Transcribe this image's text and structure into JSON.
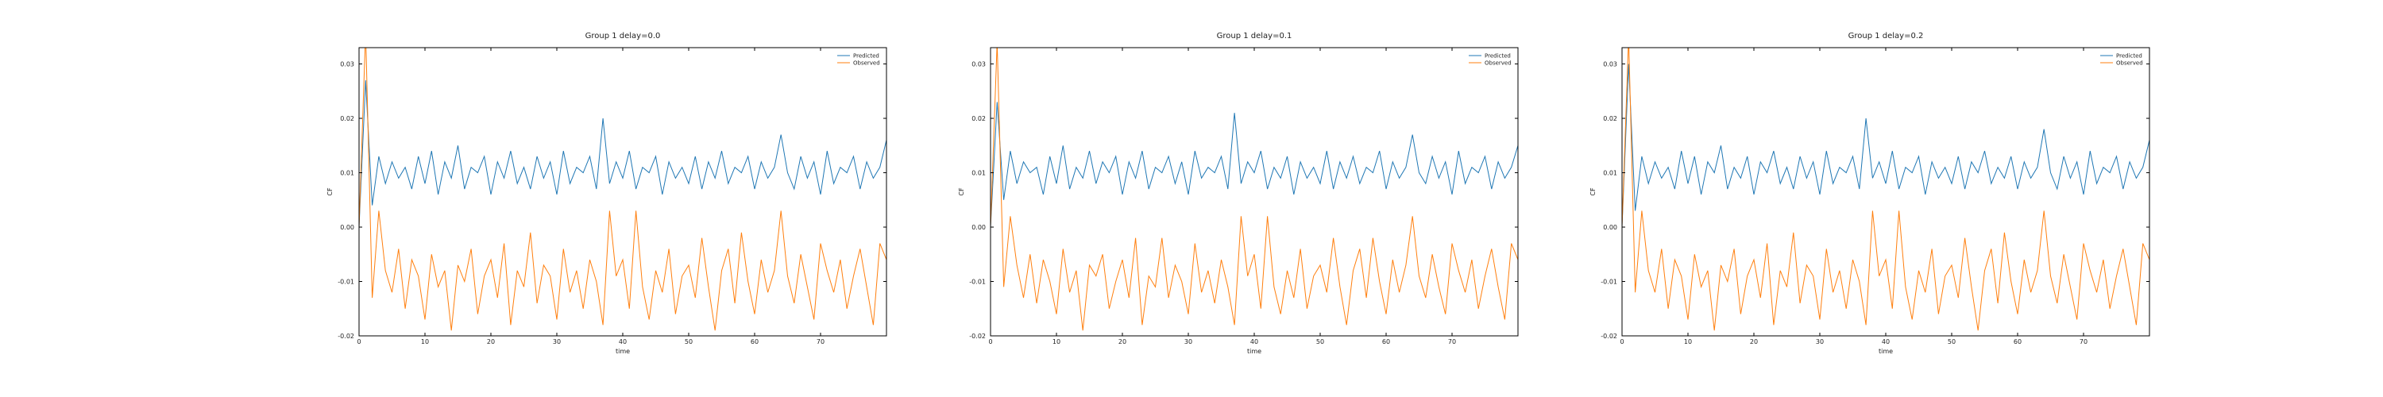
{
  "chart_data": [
    {
      "type": "line",
      "title": "Group 1 delay=0.0",
      "xlabel": "time",
      "ylabel": "CF",
      "xlim": [
        0,
        80
      ],
      "ylim": [
        -0.02,
        0.033
      ],
      "xticks": [
        0,
        10,
        20,
        30,
        40,
        50,
        60,
        70
      ],
      "yticks": [
        -0.02,
        -0.01,
        0.0,
        0.01,
        0.02,
        0.03
      ],
      "ytick_labels": [
        "-0.02",
        "-0.01",
        "0.00",
        "0.01",
        "0.02",
        "0.03"
      ],
      "legend": "top-right",
      "series": [
        {
          "name": "Predicted",
          "color": "#1f77b4",
          "x": [
            0,
            1,
            2,
            3,
            4,
            5,
            6,
            7,
            8,
            9,
            10,
            11,
            12,
            13,
            14,
            15,
            16,
            17,
            18,
            19,
            20,
            21,
            22,
            23,
            24,
            25,
            26,
            27,
            28,
            29,
            30,
            31,
            32,
            33,
            34,
            35,
            36,
            37,
            38,
            39,
            40,
            41,
            42,
            43,
            44,
            45,
            46,
            47,
            48,
            49,
            50,
            51,
            52,
            53,
            54,
            55,
            56,
            57,
            58,
            59,
            60,
            61,
            62,
            63,
            64,
            65,
            66,
            67,
            68,
            69,
            70,
            71,
            72,
            73,
            74,
            75,
            76,
            77,
            78,
            79,
            80
          ],
          "values": [
            0.0,
            0.027,
            0.004,
            0.013,
            0.008,
            0.012,
            0.009,
            0.011,
            0.007,
            0.013,
            0.008,
            0.014,
            0.006,
            0.012,
            0.009,
            0.015,
            0.007,
            0.011,
            0.01,
            0.013,
            0.006,
            0.012,
            0.009,
            0.014,
            0.008,
            0.011,
            0.007,
            0.013,
            0.009,
            0.012,
            0.006,
            0.014,
            0.008,
            0.011,
            0.01,
            0.013,
            0.007,
            0.02,
            0.008,
            0.012,
            0.009,
            0.014,
            0.007,
            0.011,
            0.01,
            0.013,
            0.006,
            0.012,
            0.009,
            0.011,
            0.008,
            0.013,
            0.007,
            0.012,
            0.009,
            0.014,
            0.008,
            0.011,
            0.01,
            0.013,
            0.007,
            0.012,
            0.009,
            0.011,
            0.017,
            0.01,
            0.007,
            0.013,
            0.009,
            0.012,
            0.006,
            0.014,
            0.008,
            0.011,
            0.01,
            0.013,
            0.007,
            0.012,
            0.009,
            0.011,
            0.016
          ]
        },
        {
          "name": "Observed",
          "color": "#ff7f0e",
          "x": [
            0,
            1,
            2,
            3,
            4,
            5,
            6,
            7,
            8,
            9,
            10,
            11,
            12,
            13,
            14,
            15,
            16,
            17,
            18,
            19,
            20,
            21,
            22,
            23,
            24,
            25,
            26,
            27,
            28,
            29,
            30,
            31,
            32,
            33,
            34,
            35,
            36,
            37,
            38,
            39,
            40,
            41,
            42,
            43,
            44,
            45,
            46,
            47,
            48,
            49,
            50,
            51,
            52,
            53,
            54,
            55,
            56,
            57,
            58,
            59,
            60,
            61,
            62,
            63,
            64,
            65,
            66,
            67,
            68,
            69,
            70,
            71,
            72,
            73,
            74,
            75,
            76,
            77,
            78,
            79,
            80
          ],
          "values": [
            0.0,
            0.036,
            -0.013,
            0.003,
            -0.008,
            -0.012,
            -0.004,
            -0.015,
            -0.006,
            -0.009,
            -0.017,
            -0.005,
            -0.011,
            -0.008,
            -0.019,
            -0.007,
            -0.01,
            -0.004,
            -0.016,
            -0.009,
            -0.006,
            -0.013,
            -0.003,
            -0.018,
            -0.008,
            -0.011,
            -0.001,
            -0.014,
            -0.007,
            -0.009,
            -0.017,
            -0.004,
            -0.012,
            -0.008,
            -0.015,
            -0.006,
            -0.01,
            -0.018,
            0.003,
            -0.009,
            -0.006,
            -0.015,
            0.003,
            -0.011,
            -0.017,
            -0.008,
            -0.012,
            -0.004,
            -0.016,
            -0.009,
            -0.007,
            -0.013,
            -0.002,
            -0.011,
            -0.019,
            -0.008,
            -0.004,
            -0.014,
            -0.001,
            -0.01,
            -0.016,
            -0.006,
            -0.012,
            -0.008,
            0.003,
            -0.009,
            -0.014,
            -0.005,
            -0.011,
            -0.017,
            -0.003,
            -0.008,
            -0.012,
            -0.006,
            -0.015,
            -0.009,
            -0.004,
            -0.011,
            -0.018,
            -0.003,
            -0.006
          ]
        }
      ]
    },
    {
      "type": "line",
      "title": "Group 1 delay=0.1",
      "xlabel": "time",
      "ylabel": "CF",
      "xlim": [
        0,
        80
      ],
      "ylim": [
        -0.02,
        0.033
      ],
      "xticks": [
        0,
        10,
        20,
        30,
        40,
        50,
        60,
        70
      ],
      "yticks": [
        -0.02,
        -0.01,
        0.0,
        0.01,
        0.02,
        0.03
      ],
      "ytick_labels": [
        "-0.02",
        "-0.01",
        "0.00",
        "0.01",
        "0.02",
        "0.03"
      ],
      "legend": "top-right",
      "series": [
        {
          "name": "Predicted",
          "color": "#1f77b4",
          "x": [
            0,
            1,
            2,
            3,
            4,
            5,
            6,
            7,
            8,
            9,
            10,
            11,
            12,
            13,
            14,
            15,
            16,
            17,
            18,
            19,
            20,
            21,
            22,
            23,
            24,
            25,
            26,
            27,
            28,
            29,
            30,
            31,
            32,
            33,
            34,
            35,
            36,
            37,
            38,
            39,
            40,
            41,
            42,
            43,
            44,
            45,
            46,
            47,
            48,
            49,
            50,
            51,
            52,
            53,
            54,
            55,
            56,
            57,
            58,
            59,
            60,
            61,
            62,
            63,
            64,
            65,
            66,
            67,
            68,
            69,
            70,
            71,
            72,
            73,
            74,
            75,
            76,
            77,
            78,
            79,
            80
          ],
          "values": [
            0.0,
            0.023,
            0.005,
            0.014,
            0.008,
            0.012,
            0.01,
            0.011,
            0.006,
            0.013,
            0.008,
            0.015,
            0.007,
            0.011,
            0.009,
            0.014,
            0.008,
            0.012,
            0.01,
            0.013,
            0.006,
            0.012,
            0.009,
            0.014,
            0.007,
            0.011,
            0.01,
            0.013,
            0.008,
            0.012,
            0.006,
            0.014,
            0.009,
            0.011,
            0.01,
            0.013,
            0.007,
            0.021,
            0.008,
            0.012,
            0.01,
            0.014,
            0.007,
            0.011,
            0.009,
            0.013,
            0.006,
            0.012,
            0.009,
            0.011,
            0.008,
            0.014,
            0.007,
            0.012,
            0.009,
            0.013,
            0.008,
            0.011,
            0.01,
            0.014,
            0.007,
            0.012,
            0.009,
            0.011,
            0.017,
            0.01,
            0.008,
            0.013,
            0.009,
            0.012,
            0.006,
            0.014,
            0.008,
            0.011,
            0.01,
            0.013,
            0.007,
            0.012,
            0.009,
            0.011,
            0.015
          ]
        },
        {
          "name": "Observed",
          "color": "#ff7f0e",
          "x": [
            0,
            1,
            2,
            3,
            4,
            5,
            6,
            7,
            8,
            9,
            10,
            11,
            12,
            13,
            14,
            15,
            16,
            17,
            18,
            19,
            20,
            21,
            22,
            23,
            24,
            25,
            26,
            27,
            28,
            29,
            30,
            31,
            32,
            33,
            34,
            35,
            36,
            37,
            38,
            39,
            40,
            41,
            42,
            43,
            44,
            45,
            46,
            47,
            48,
            49,
            50,
            51,
            52,
            53,
            54,
            55,
            56,
            57,
            58,
            59,
            60,
            61,
            62,
            63,
            64,
            65,
            66,
            67,
            68,
            69,
            70,
            71,
            72,
            73,
            74,
            75,
            76,
            77,
            78,
            79,
            80
          ],
          "values": [
            0.0,
            0.034,
            -0.011,
            0.002,
            -0.007,
            -0.013,
            -0.005,
            -0.014,
            -0.006,
            -0.01,
            -0.016,
            -0.004,
            -0.012,
            -0.008,
            -0.019,
            -0.007,
            -0.009,
            -0.005,
            -0.015,
            -0.01,
            -0.006,
            -0.013,
            -0.002,
            -0.018,
            -0.009,
            -0.011,
            -0.002,
            -0.013,
            -0.007,
            -0.01,
            -0.016,
            -0.003,
            -0.012,
            -0.008,
            -0.014,
            -0.006,
            -0.011,
            -0.018,
            0.002,
            -0.009,
            -0.005,
            -0.015,
            0.002,
            -0.011,
            -0.016,
            -0.008,
            -0.013,
            -0.004,
            -0.015,
            -0.009,
            -0.007,
            -0.012,
            -0.002,
            -0.011,
            -0.018,
            -0.008,
            -0.004,
            -0.013,
            -0.002,
            -0.01,
            -0.016,
            -0.006,
            -0.012,
            -0.007,
            0.002,
            -0.009,
            -0.013,
            -0.005,
            -0.011,
            -0.016,
            -0.003,
            -0.008,
            -0.012,
            -0.006,
            -0.015,
            -0.009,
            -0.004,
            -0.011,
            -0.017,
            -0.003,
            -0.006
          ]
        }
      ]
    },
    {
      "type": "line",
      "title": "Group 1 delay=0.2",
      "xlabel": "time",
      "ylabel": "CF",
      "xlim": [
        0,
        80
      ],
      "ylim": [
        -0.02,
        0.033
      ],
      "xticks": [
        0,
        10,
        20,
        30,
        40,
        50,
        60,
        70
      ],
      "yticks": [
        -0.02,
        -0.01,
        0.0,
        0.01,
        0.02,
        0.03
      ],
      "ytick_labels": [
        "-0.02",
        "-0.01",
        "0.00",
        "0.01",
        "0.02",
        "0.03"
      ],
      "legend": "top-right",
      "series": [
        {
          "name": "Predicted",
          "color": "#1f77b4",
          "x": [
            0,
            1,
            2,
            3,
            4,
            5,
            6,
            7,
            8,
            9,
            10,
            11,
            12,
            13,
            14,
            15,
            16,
            17,
            18,
            19,
            20,
            21,
            22,
            23,
            24,
            25,
            26,
            27,
            28,
            29,
            30,
            31,
            32,
            33,
            34,
            35,
            36,
            37,
            38,
            39,
            40,
            41,
            42,
            43,
            44,
            45,
            46,
            47,
            48,
            49,
            50,
            51,
            52,
            53,
            54,
            55,
            56,
            57,
            58,
            59,
            60,
            61,
            62,
            63,
            64,
            65,
            66,
            67,
            68,
            69,
            70,
            71,
            72,
            73,
            74,
            75,
            76,
            77,
            78,
            79,
            80
          ],
          "values": [
            0.0,
            0.03,
            0.003,
            0.013,
            0.008,
            0.012,
            0.009,
            0.011,
            0.007,
            0.014,
            0.008,
            0.013,
            0.006,
            0.012,
            0.01,
            0.015,
            0.007,
            0.011,
            0.009,
            0.013,
            0.006,
            0.012,
            0.01,
            0.014,
            0.008,
            0.011,
            0.007,
            0.013,
            0.009,
            0.012,
            0.006,
            0.014,
            0.008,
            0.011,
            0.01,
            0.013,
            0.007,
            0.02,
            0.009,
            0.012,
            0.008,
            0.014,
            0.007,
            0.011,
            0.01,
            0.013,
            0.006,
            0.012,
            0.009,
            0.011,
            0.008,
            0.013,
            0.007,
            0.012,
            0.01,
            0.014,
            0.008,
            0.011,
            0.009,
            0.013,
            0.007,
            0.012,
            0.009,
            0.011,
            0.018,
            0.01,
            0.007,
            0.013,
            0.009,
            0.012,
            0.006,
            0.014,
            0.008,
            0.011,
            0.01,
            0.013,
            0.007,
            0.012,
            0.009,
            0.011,
            0.016
          ]
        },
        {
          "name": "Observed",
          "color": "#ff7f0e",
          "x": [
            0,
            1,
            2,
            3,
            4,
            5,
            6,
            7,
            8,
            9,
            10,
            11,
            12,
            13,
            14,
            15,
            16,
            17,
            18,
            19,
            20,
            21,
            22,
            23,
            24,
            25,
            26,
            27,
            28,
            29,
            30,
            31,
            32,
            33,
            34,
            35,
            36,
            37,
            38,
            39,
            40,
            41,
            42,
            43,
            44,
            45,
            46,
            47,
            48,
            49,
            50,
            51,
            52,
            53,
            54,
            55,
            56,
            57,
            58,
            59,
            60,
            61,
            62,
            63,
            64,
            65,
            66,
            67,
            68,
            69,
            70,
            71,
            72,
            73,
            74,
            75,
            76,
            77,
            78,
            79,
            80
          ],
          "values": [
            0.0,
            0.035,
            -0.012,
            0.003,
            -0.008,
            -0.012,
            -0.004,
            -0.015,
            -0.006,
            -0.009,
            -0.017,
            -0.005,
            -0.011,
            -0.008,
            -0.019,
            -0.007,
            -0.01,
            -0.004,
            -0.016,
            -0.009,
            -0.006,
            -0.013,
            -0.003,
            -0.018,
            -0.008,
            -0.011,
            -0.001,
            -0.014,
            -0.007,
            -0.009,
            -0.017,
            -0.004,
            -0.012,
            -0.008,
            -0.015,
            -0.006,
            -0.01,
            -0.018,
            0.003,
            -0.009,
            -0.006,
            -0.015,
            0.003,
            -0.011,
            -0.017,
            -0.008,
            -0.012,
            -0.004,
            -0.016,
            -0.009,
            -0.007,
            -0.013,
            -0.002,
            -0.011,
            -0.019,
            -0.008,
            -0.004,
            -0.014,
            -0.001,
            -0.01,
            -0.016,
            -0.006,
            -0.012,
            -0.008,
            0.003,
            -0.009,
            -0.014,
            -0.005,
            -0.011,
            -0.017,
            -0.003,
            -0.008,
            -0.012,
            -0.006,
            -0.015,
            -0.009,
            -0.004,
            -0.011,
            -0.018,
            -0.003,
            -0.006
          ]
        }
      ]
    }
  ]
}
